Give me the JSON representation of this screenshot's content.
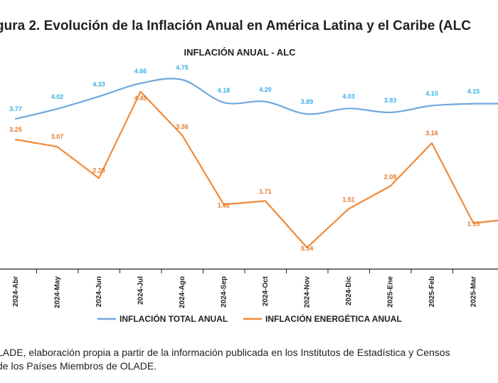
{
  "figure": {
    "title": "gura 2. Evolución de la Inflación Anual en América Latina y el Caribe (ALC",
    "source_line1": "LADE, elaboración propia a partir de la información publicada en los Institutos de Estadística y Censos",
    "source_line2": "de los Países Miembros de OLADE."
  },
  "colors": {
    "total": "#6fa8dc",
    "total_label": "#3bb0e8",
    "energy": "#f08a3a",
    "energy_label": "#e07a30",
    "axis": "#222222"
  },
  "chart_data": {
    "type": "line",
    "title": "INFLACIÓN ANUAL - ALC",
    "xlabel": "",
    "ylabel": "",
    "categories": [
      "2024-Abr",
      "2024-May",
      "2024-Jun",
      "2024-Jul",
      "2024-Ago",
      "2024-Sep",
      "2024-Oct",
      "2024-Nov",
      "2024-Dic",
      "2025-Ene",
      "2025-Feb",
      "2025-Mar"
    ],
    "series": [
      {
        "name": "INFLACIÓN TOTAL ANUAL",
        "values": [
          3.77,
          4.02,
          4.33,
          4.66,
          4.75,
          4.18,
          4.2,
          3.89,
          4.03,
          3.93,
          4.1,
          4.15
        ]
      },
      {
        "name": "INFLACIÓN ENERGÉTICA ANUAL",
        "values": [
          3.25,
          3.07,
          2.28,
          4.45,
          3.36,
          1.62,
          1.71,
          0.54,
          1.51,
          2.08,
          3.16,
          1.15
        ]
      }
    ],
    "labels": {
      "total": [
        "3.77",
        "4.02",
        "4.33",
        "4.66",
        "4.75",
        "4.18",
        "4.20",
        "3.89",
        "4.03",
        "3.93",
        "4.10",
        "4.15"
      ],
      "energy": [
        "3.25",
        "3.07",
        "2.28",
        "4.45",
        "3.36",
        "1.62",
        "1.71",
        "0.54",
        "1.51",
        "2.08",
        "3.16",
        "1.15"
      ]
    },
    "ylim": [
      0,
      5.6
    ],
    "grid": false,
    "legend_position": "bottom"
  }
}
